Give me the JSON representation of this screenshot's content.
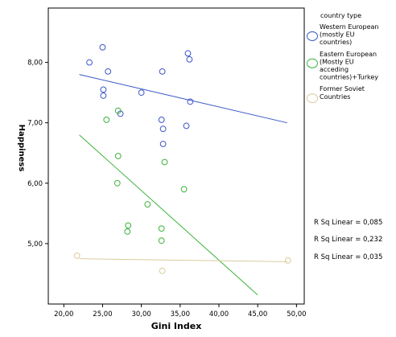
{
  "chart_data": {
    "type": "scatter",
    "title": "",
    "xlabel": "Gini Index",
    "ylabel": "Happiness",
    "xlim": [
      18,
      51
    ],
    "ylim": [
      4.0,
      8.9
    ],
    "xticks": [
      20,
      25,
      30,
      35,
      40,
      45,
      50
    ],
    "xtick_labels": [
      "20,00",
      "25,00",
      "30,00",
      "35,00",
      "40,00",
      "45,00",
      "50,00"
    ],
    "yticks": [
      5,
      6,
      7,
      8
    ],
    "ytick_labels": [
      "5,00",
      "6,00",
      "7,00",
      "8,00"
    ],
    "grid": false,
    "legend_title": "country type",
    "legend_position": "right",
    "series": [
      {
        "name": "Western European (mostly EU countries)",
        "legend_lines": [
          "Western European",
          "(mostly EU",
          "countries)"
        ],
        "color": "#3a56c8",
        "points": [
          [
            25.0,
            8.25
          ],
          [
            23.3,
            8.0
          ],
          [
            25.7,
            7.85
          ],
          [
            25.1,
            7.55
          ],
          [
            25.1,
            7.45
          ],
          [
            30.0,
            7.5
          ],
          [
            32.7,
            7.85
          ],
          [
            36.0,
            8.15
          ],
          [
            36.2,
            8.05
          ],
          [
            36.3,
            7.35
          ],
          [
            27.3,
            7.15
          ],
          [
            32.6,
            7.05
          ],
          [
            32.8,
            6.9
          ],
          [
            35.8,
            6.95
          ],
          [
            32.8,
            6.65
          ]
        ],
        "fit": {
          "x": [
            22.0,
            48.8
          ],
          "y": [
            7.8,
            7.0
          ]
        },
        "r_squared_label": "R Sq Linear = 0,085"
      },
      {
        "name": "Eastern European (Mostly EU acceding countries)+Turkey",
        "legend_lines": [
          "Eastern European",
          "(Mostly EU",
          "acceding",
          "countries)+Turkey"
        ],
        "color": "#3cb33c",
        "points": [
          [
            27.0,
            7.2
          ],
          [
            25.5,
            7.05
          ],
          [
            27.0,
            6.45
          ],
          [
            33.0,
            6.35
          ],
          [
            26.9,
            6.0
          ],
          [
            35.5,
            5.9
          ],
          [
            30.8,
            5.65
          ],
          [
            28.3,
            5.3
          ],
          [
            28.2,
            5.2
          ],
          [
            32.6,
            5.25
          ],
          [
            32.6,
            5.05
          ]
        ],
        "fit": {
          "x": [
            22.0,
            45.0
          ],
          "y": [
            6.8,
            4.15
          ]
        },
        "r_squared_label": "R Sq Linear = 0,232"
      },
      {
        "name": "Former Soviet Countries",
        "legend_lines": [
          "Former Soviet",
          "Countries"
        ],
        "color": "#d8cc9a",
        "points": [
          [
            21.7,
            4.8
          ],
          [
            48.9,
            4.72
          ],
          [
            32.7,
            4.55
          ]
        ],
        "fit": {
          "x": [
            22.0,
            48.8
          ],
          "y": [
            4.75,
            4.7
          ]
        },
        "r_squared_label": "R Sq Linear = 0,035"
      }
    ]
  }
}
